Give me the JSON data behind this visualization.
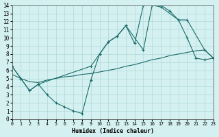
{
  "xlabel": "Humidex (Indice chaleur)",
  "background_color": "#d4f0f0",
  "grid_color": "#b0d8d8",
  "line_color": "#1a6b6b",
  "xlim": [
    0,
    23
  ],
  "ylim": [
    0,
    14
  ],
  "xticks": [
    0,
    1,
    2,
    3,
    4,
    5,
    6,
    7,
    8,
    9,
    10,
    11,
    12,
    13,
    14,
    15,
    16,
    17,
    18,
    19,
    20,
    21,
    22,
    23
  ],
  "yticks": [
    0,
    1,
    2,
    3,
    4,
    5,
    6,
    7,
    8,
    9,
    10,
    11,
    12,
    13,
    14
  ],
  "series1_x": [
    0,
    1,
    2,
    3,
    4,
    5,
    6,
    7,
    8,
    9,
    10,
    11,
    12,
    13,
    14,
    15,
    16,
    17,
    18,
    19,
    20,
    21,
    22,
    23
  ],
  "series1_y": [
    6.5,
    5.0,
    3.5,
    4.3,
    3.0,
    2.0,
    1.5,
    1.0,
    0.7,
    4.8,
    8.0,
    9.5,
    10.2,
    11.5,
    9.3,
    14.0,
    14.2,
    14.0,
    13.3,
    12.2,
    10.0,
    7.5,
    7.3,
    7.5
  ],
  "series2_x": [
    0,
    1,
    2,
    3,
    4,
    5,
    6,
    7,
    8,
    9,
    10,
    11,
    12,
    13,
    14,
    15,
    16,
    17,
    18,
    19,
    20,
    21,
    22,
    23
  ],
  "series2_y": [
    5.5,
    5.0,
    4.6,
    4.5,
    4.8,
    5.0,
    5.2,
    5.3,
    5.5,
    5.6,
    5.8,
    6.0,
    6.2,
    6.5,
    6.7,
    7.0,
    7.3,
    7.5,
    7.8,
    8.0,
    8.2,
    8.4,
    8.5,
    7.5
  ],
  "series3_x": [
    0,
    1,
    2,
    3,
    9,
    10,
    11,
    12,
    13,
    15,
    16,
    17,
    19,
    20,
    22,
    23
  ],
  "series3_y": [
    6.5,
    5.0,
    3.5,
    4.3,
    6.5,
    8.0,
    9.5,
    10.2,
    11.5,
    8.5,
    14.0,
    13.8,
    12.2,
    12.2,
    8.5,
    7.5
  ]
}
